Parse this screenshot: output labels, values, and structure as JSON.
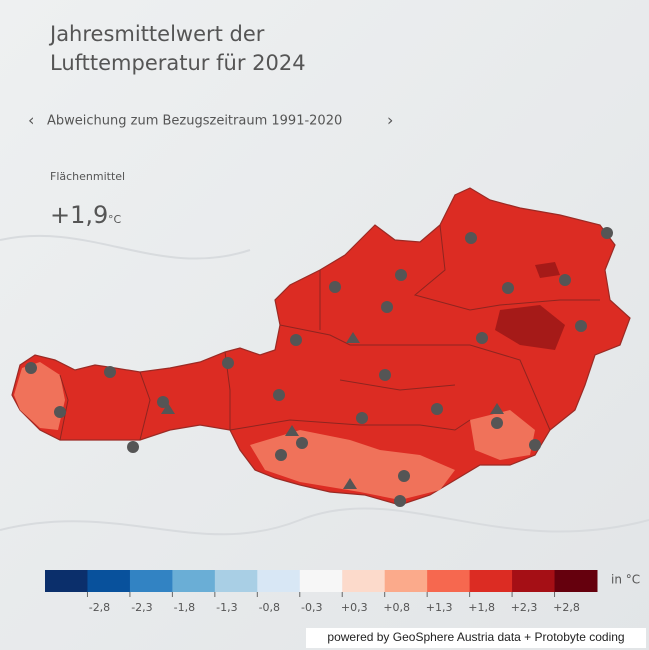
{
  "header": {
    "title_lines": [
      "Jahresmittelwert der",
      "Lufttemperatur für 2024"
    ],
    "prev": "‹",
    "subtitle": "Abweichung zum Bezugszeitraum 1991-2020",
    "next": "›"
  },
  "summary": {
    "label": "Flächenmittel",
    "value": "+1,9",
    "unit": "°C"
  },
  "legend": {
    "colors": [
      "#0b2f6b",
      "#08519c",
      "#3283c3",
      "#6aaed6",
      "#a9cfe5",
      "#d8e7f5",
      "#f7f7f7",
      "#fcdacb",
      "#fbaa8b",
      "#f6684f",
      "#dc2c23",
      "#a50f15",
      "#65000d"
    ],
    "labels": [
      "-2,8",
      "-2,3",
      "-1,8",
      "-1,3",
      "-0,8",
      "-0,3",
      "+0,3",
      "+0,8",
      "+1,3",
      "+1,8",
      "+2,3",
      "+2,8"
    ],
    "unit": "in °C"
  },
  "footer": {
    "credit": "powered by GeoSphere Austria data + Protobyte coding"
  }
}
